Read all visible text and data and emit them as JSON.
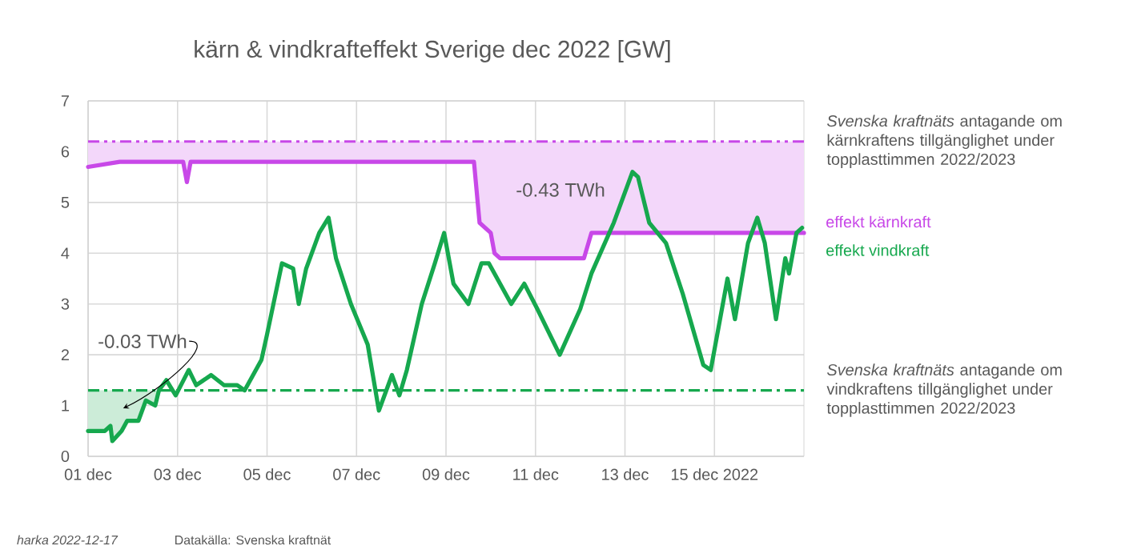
{
  "chart_data": {
    "type": "line",
    "title": "kärn & vindkrafteffekt Sverige dec 2022 [GW]",
    "xlim": [
      "2022-12-01T00:00",
      "2022-12-17T00:00"
    ],
    "xticks": [
      {
        "value": "2022-12-01T00:00",
        "label": "01 dec"
      },
      {
        "value": "2022-12-03T00:00",
        "label": "03 dec"
      },
      {
        "value": "2022-12-05T00:00",
        "label": "05 dec"
      },
      {
        "value": "2022-12-07T00:00",
        "label": "07 dec"
      },
      {
        "value": "2022-12-09T00:00",
        "label": "09 dec"
      },
      {
        "value": "2022-12-11T00:00",
        "label": "11 dec"
      },
      {
        "value": "2022-12-13T00:00",
        "label": "13 dec"
      },
      {
        "value": "2022-12-15T00:00",
        "label": "15 dec 2022"
      }
    ],
    "ylim": [
      0,
      7
    ],
    "yticks": [
      0,
      1,
      2,
      3,
      4,
      5,
      6,
      7
    ],
    "grid": true,
    "legend": "right",
    "series": [
      {
        "name": "effekt kärnkraft",
        "color": "#c848e8",
        "x": [
          "2022-12-01T00:00",
          "2022-12-01T17:00",
          "2022-12-03T03:00",
          "2022-12-03T05:00",
          "2022-12-03T07:00",
          "2022-12-09T15:00",
          "2022-12-09T18:00",
          "2022-12-10T00:00",
          "2022-12-10T02:00",
          "2022-12-10T05:00",
          "2022-12-12T02:00",
          "2022-12-12T06:00",
          "2022-12-17T00:00"
        ],
        "values": [
          5.7,
          5.8,
          5.8,
          5.4,
          5.8,
          5.8,
          4.6,
          4.4,
          4.0,
          3.9,
          3.9,
          4.4,
          4.4
        ],
        "lower": [
          5.7,
          5.8,
          5.8,
          5.4,
          5.8,
          5.8,
          4.6,
          4.4,
          4.0,
          3.9,
          3.9,
          4.4,
          4.4
        ],
        "upper": [
          6.2,
          6.2,
          6.2,
          6.2,
          6.2,
          6.2,
          6.2,
          6.2,
          6.2,
          6.2,
          6.2,
          6.2,
          6.2
        ]
      },
      {
        "name": "effekt vindkraft",
        "color": "#16a84e",
        "x": [
          "2022-12-01T00:00",
          "2022-12-01T09:00",
          "2022-12-01T12:00",
          "2022-12-01T13:00",
          "2022-12-01T18:00",
          "2022-12-01T21:00",
          "2022-12-02T03:00",
          "2022-12-02T07:00",
          "2022-12-02T12:00",
          "2022-12-02T14:00",
          "2022-12-02T18:00",
          "2022-12-02T23:00",
          "2022-12-03T06:00",
          "2022-12-03T10:00",
          "2022-12-03T18:00",
          "2022-12-04T01:00",
          "2022-12-04T08:00",
          "2022-12-04T12:00",
          "2022-12-04T21:00",
          "2022-12-05T00:00",
          "2022-12-05T08:00",
          "2022-12-05T14:00",
          "2022-12-05T17:00",
          "2022-12-05T21:00",
          "2022-12-06T04:00",
          "2022-12-06T09:00",
          "2022-12-06T13:00",
          "2022-12-06T21:00",
          "2022-12-07T06:00",
          "2022-12-07T12:00",
          "2022-12-07T19:00",
          "2022-12-07T23:00",
          "2022-12-08T03:00",
          "2022-12-08T11:00",
          "2022-12-08T18:00",
          "2022-12-08T23:00",
          "2022-12-09T04:00",
          "2022-12-09T12:00",
          "2022-12-09T19:00",
          "2022-12-09T23:00",
          "2022-12-10T11:00",
          "2022-12-10T18:00",
          "2022-12-11T01:00",
          "2022-12-11T13:00",
          "2022-12-12T00:00",
          "2022-12-12T06:00",
          "2022-12-12T18:00",
          "2022-12-13T04:00",
          "2022-12-13T07:00",
          "2022-12-13T13:00",
          "2022-12-13T22:00",
          "2022-12-14T07:00",
          "2022-12-14T18:00",
          "2022-12-14T22:00",
          "2022-12-15T07:00",
          "2022-12-15T11:00",
          "2022-12-15T18:00",
          "2022-12-15T23:00",
          "2022-12-16T03:00",
          "2022-12-16T09:00",
          "2022-12-16T14:00",
          "2022-12-16T16:00",
          "2022-12-16T20:00",
          "2022-12-16T23:00"
        ],
        "values": [
          0.5,
          0.5,
          0.6,
          0.3,
          0.5,
          0.7,
          0.7,
          1.1,
          1.0,
          1.3,
          1.5,
          1.2,
          1.7,
          1.4,
          1.6,
          1.4,
          1.4,
          1.3,
          1.9,
          2.4,
          3.8,
          3.7,
          3.0,
          3.7,
          4.4,
          4.7,
          3.9,
          3.0,
          2.2,
          0.9,
          1.6,
          1.2,
          1.7,
          3.0,
          3.8,
          4.4,
          3.4,
          3.0,
          3.8,
          3.8,
          3.0,
          3.4,
          2.9,
          2.0,
          2.9,
          3.6,
          4.6,
          5.6,
          5.5,
          4.6,
          4.2,
          3.2,
          1.8,
          1.7,
          3.5,
          2.7,
          4.2,
          4.7,
          4.2,
          2.7,
          3.9,
          3.6,
          4.4,
          4.5
        ],
        "lower": [
          0.5,
          0.5,
          0.6,
          0.3,
          0.5,
          0.7,
          0.7,
          1.1,
          1.0,
          1.3,
          null,
          null,
          null,
          null,
          null,
          null,
          null,
          null,
          null,
          null,
          null,
          null,
          null,
          null,
          null,
          null,
          null,
          null,
          null,
          null,
          null,
          null,
          null,
          null,
          null,
          null,
          null,
          null,
          null,
          null,
          null,
          null,
          null,
          null,
          null,
          null,
          null,
          null,
          null,
          null,
          null,
          null,
          null,
          null,
          null,
          null,
          null,
          null,
          null,
          null,
          null,
          null,
          null,
          null
        ],
        "upper": [
          1.3,
          1.3,
          1.3,
          1.3,
          1.3,
          1.3,
          1.3,
          1.3,
          1.3,
          1.3,
          null,
          null,
          null,
          null,
          null,
          null,
          null,
          null,
          null,
          null,
          null,
          null,
          null,
          null,
          null,
          null,
          null,
          null,
          null,
          null,
          null,
          null,
          null,
          null,
          null,
          null,
          null,
          null,
          null,
          null,
          null,
          null,
          null,
          null,
          null,
          null,
          null,
          null,
          null,
          null,
          null,
          null,
          null,
          null,
          null,
          null,
          null,
          null,
          null,
          null,
          null,
          null,
          null,
          null
        ]
      }
    ],
    "ref_lines": [
      {
        "axis": "y",
        "value": 6.2,
        "label": "*Svenska kraftnäts* antagande om kärnkraftens tillgänglighet under topplasttimmen 2022/2023",
        "color": "#c848e8",
        "line_style": "dashdotdot"
      },
      {
        "axis": "y",
        "value": 1.3,
        "label": "*Svenska kraftnäts* antagande om vindkraftens tillgänglighet under topplasttimmen 2022/2023",
        "color": "#16a84e",
        "line_style": "dashdot"
      }
    ],
    "annotations": [
      "-0.03 TWh",
      "-0.43 TWh",
      "*harka 2022-12-17*",
      "Datakälla: Svenska kraftnät"
    ]
  }
}
